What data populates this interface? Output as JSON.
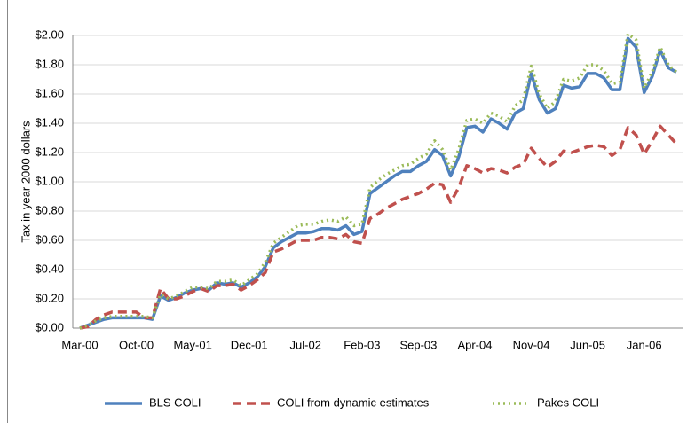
{
  "chart_data": {
    "type": "line",
    "ylabel": "Tax in year 2000 dollars",
    "categories": [
      "Mar-00",
      null,
      null,
      null,
      null,
      null,
      null,
      "Oct-00",
      null,
      null,
      null,
      null,
      null,
      null,
      "May-01",
      null,
      null,
      null,
      null,
      null,
      null,
      "Dec-01",
      null,
      null,
      null,
      null,
      null,
      null,
      "Jul-02",
      null,
      null,
      null,
      null,
      null,
      null,
      "Feb-03",
      null,
      null,
      null,
      null,
      null,
      null,
      "Sep-03",
      null,
      null,
      null,
      null,
      null,
      null,
      "Apr-04",
      null,
      null,
      null,
      null,
      null,
      null,
      "Nov-04",
      null,
      null,
      null,
      null,
      null,
      null,
      "Jun-05",
      null,
      null,
      null,
      null,
      null,
      null,
      "Jan-06",
      null,
      null,
      null,
      null
    ],
    "series": [
      {
        "name": "BLS COLI",
        "color": "#4f81bd",
        "style": "solid",
        "values": [
          0,
          0.02,
          0.04,
          0.06,
          0.07,
          0.07,
          0.07,
          0.07,
          0.07,
          0.06,
          0.22,
          0.19,
          0.21,
          0.24,
          0.26,
          0.27,
          0.26,
          0.31,
          0.3,
          0.31,
          0.28,
          0.31,
          0.35,
          0.42,
          0.55,
          0.59,
          0.62,
          0.65,
          0.65,
          0.66,
          0.68,
          0.68,
          0.67,
          0.7,
          0.64,
          0.66,
          0.92,
          0.96,
          1.0,
          1.04,
          1.07,
          1.07,
          1.11,
          1.14,
          1.22,
          1.18,
          1.04,
          1.17,
          1.37,
          1.38,
          1.34,
          1.43,
          1.4,
          1.36,
          1.47,
          1.5,
          1.74,
          1.56,
          1.47,
          1.5,
          1.66,
          1.64,
          1.65,
          1.74,
          1.74,
          1.71,
          1.63,
          1.63,
          1.98,
          1.92,
          1.61,
          1.72,
          1.9,
          1.78,
          1.75
        ]
      },
      {
        "name": "COLI from dynamic estimates",
        "color": "#c0504d",
        "style": "dashed",
        "values": [
          0,
          0.01,
          0.06,
          0.09,
          0.11,
          0.11,
          0.11,
          0.11,
          0.07,
          0.07,
          0.27,
          0.2,
          0.2,
          0.22,
          0.25,
          0.27,
          0.25,
          0.29,
          0.29,
          0.3,
          0.26,
          0.29,
          0.33,
          0.38,
          0.52,
          0.54,
          0.57,
          0.6,
          0.6,
          0.6,
          0.62,
          0.62,
          0.61,
          0.64,
          0.59,
          0.58,
          0.75,
          0.78,
          0.82,
          0.85,
          0.88,
          0.9,
          0.92,
          0.95,
          0.99,
          0.98,
          0.86,
          0.96,
          1.11,
          1.09,
          1.06,
          1.09,
          1.08,
          1.06,
          1.1,
          1.12,
          1.23,
          1.16,
          1.1,
          1.14,
          1.21,
          1.2,
          1.22,
          1.24,
          1.25,
          1.24,
          1.18,
          1.22,
          1.37,
          1.32,
          1.19,
          1.28,
          1.38,
          1.32,
          1.26
        ]
      },
      {
        "name": "Pakes COLI",
        "color": "#9bbb59",
        "style": "dotted",
        "values": [
          0,
          0.02,
          0.05,
          0.07,
          0.08,
          0.08,
          0.08,
          0.08,
          0.08,
          0.07,
          0.23,
          0.2,
          0.22,
          0.25,
          0.28,
          0.28,
          0.27,
          0.32,
          0.32,
          0.33,
          0.29,
          0.33,
          0.37,
          0.45,
          0.58,
          0.62,
          0.66,
          0.7,
          0.71,
          0.71,
          0.73,
          0.74,
          0.73,
          0.76,
          0.7,
          0.71,
          0.96,
          1.01,
          1.05,
          1.08,
          1.11,
          1.12,
          1.16,
          1.19,
          1.28,
          1.22,
          1.08,
          1.22,
          1.42,
          1.43,
          1.4,
          1.47,
          1.45,
          1.41,
          1.52,
          1.56,
          1.79,
          1.6,
          1.5,
          1.55,
          1.7,
          1.69,
          1.71,
          1.8,
          1.8,
          1.76,
          1.67,
          1.68,
          2.01,
          1.97,
          1.64,
          1.75,
          1.92,
          1.8,
          1.75
        ]
      }
    ],
    "ylim": [
      0,
      2
    ],
    "yticks": [
      {
        "value": 0,
        "label": "$0.00"
      },
      {
        "value": 0.2,
        "label": "$0.20"
      },
      {
        "value": 0.4,
        "label": "$0.40"
      },
      {
        "value": 0.6,
        "label": "$0.60"
      },
      {
        "value": 0.8,
        "label": "$0.80"
      },
      {
        "value": 1,
        "label": "$1.00"
      },
      {
        "value": 1.2,
        "label": "$1.20"
      },
      {
        "value": 1.4,
        "label": "$1.40"
      },
      {
        "value": 1.6,
        "label": "$1.60"
      },
      {
        "value": 1.8,
        "label": "$1.80"
      },
      {
        "value": 2,
        "label": "$2.00"
      }
    ],
    "grid": true,
    "legend": "bottom"
  }
}
